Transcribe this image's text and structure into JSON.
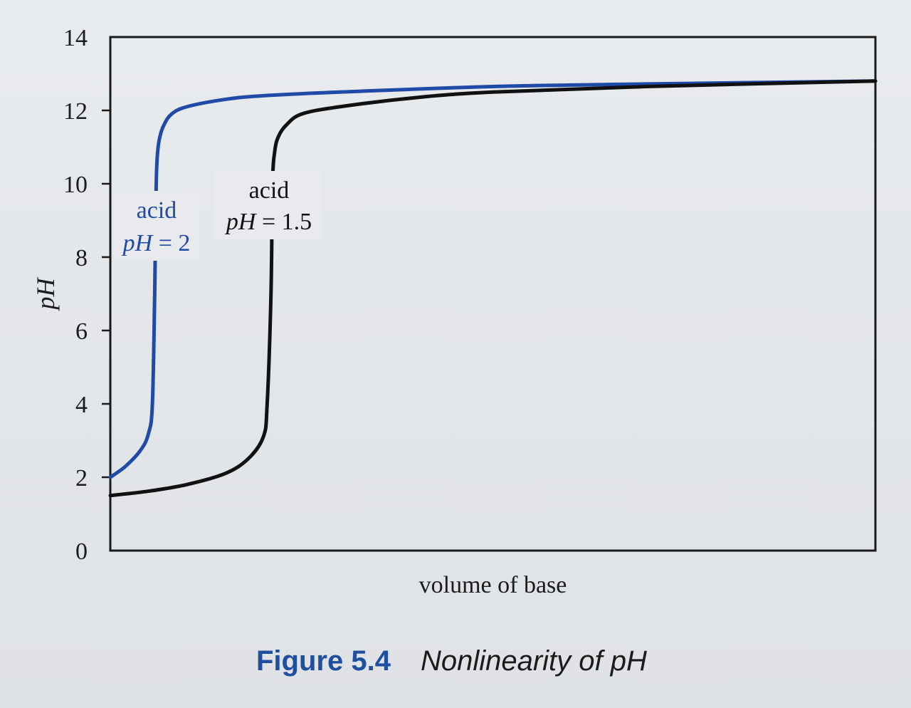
{
  "chart_data": {
    "type": "line",
    "xlabel": "volume of base",
    "ylabel": "pH",
    "ylim": [
      0,
      14
    ],
    "yticks": [
      0,
      2,
      4,
      6,
      8,
      10,
      12,
      14
    ],
    "grid": false,
    "series": [
      {
        "color": "#1f4aa8",
        "x": [
          0,
          0.02,
          0.04,
          0.05,
          0.055,
          0.058,
          0.06,
          0.062,
          0.065,
          0.07,
          0.08,
          0.1,
          0.15,
          0.2,
          0.3,
          0.5,
          0.7,
          1.0
        ],
        "y": [
          2.0,
          2.3,
          2.75,
          3.2,
          4.0,
          7.0,
          10.0,
          10.9,
          11.3,
          11.6,
          11.9,
          12.1,
          12.3,
          12.4,
          12.5,
          12.65,
          12.72,
          12.8
        ]
      },
      {
        "color": "#111111",
        "x": [
          0,
          0.05,
          0.1,
          0.15,
          0.18,
          0.2,
          0.205,
          0.21,
          0.212,
          0.215,
          0.22,
          0.23,
          0.25,
          0.3,
          0.4,
          0.5,
          0.7,
          1.0
        ],
        "y": [
          1.5,
          1.62,
          1.8,
          2.1,
          2.5,
          3.1,
          4.0,
          7.0,
          10.0,
          10.9,
          11.3,
          11.6,
          11.9,
          12.1,
          12.35,
          12.5,
          12.65,
          12.8
        ]
      }
    ],
    "annotations": [
      {
        "series": 0,
        "line1": "acid",
        "line2": "pH = 2",
        "color": "#1f4aa8"
      },
      {
        "series": 1,
        "line1": "acid",
        "line2": "pH = 1.5",
        "color": "#111111"
      }
    ]
  },
  "caption": {
    "figure": "Figure 5.4",
    "title": "Nonlinearity of pH"
  }
}
